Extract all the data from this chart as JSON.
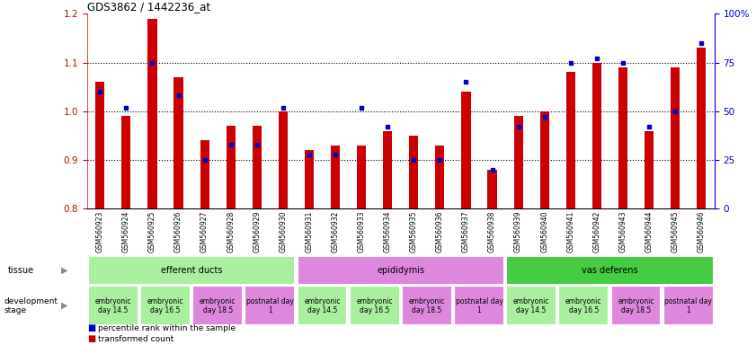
{
  "title": "GDS3862 / 1442236_at",
  "samples": [
    "GSM560923",
    "GSM560924",
    "GSM560925",
    "GSM560926",
    "GSM560927",
    "GSM560928",
    "GSM560929",
    "GSM560930",
    "GSM560931",
    "GSM560932",
    "GSM560933",
    "GSM560934",
    "GSM560935",
    "GSM560936",
    "GSM560937",
    "GSM560938",
    "GSM560939",
    "GSM560940",
    "GSM560941",
    "GSM560942",
    "GSM560943",
    "GSM560944",
    "GSM560945",
    "GSM560946"
  ],
  "red_values": [
    1.06,
    0.99,
    1.19,
    1.07,
    0.94,
    0.97,
    0.97,
    1.0,
    0.92,
    0.93,
    0.93,
    0.96,
    0.95,
    0.93,
    1.04,
    0.88,
    0.99,
    1.0,
    1.08,
    1.1,
    1.09,
    0.96,
    1.09,
    1.13
  ],
  "blue_values": [
    60,
    52,
    75,
    58,
    25,
    33,
    33,
    52,
    28,
    28,
    52,
    42,
    25,
    25,
    65,
    20,
    42,
    47,
    75,
    77,
    75,
    42,
    50,
    85
  ],
  "ylim_left": [
    0.8,
    1.2
  ],
  "ylim_right": [
    0,
    100
  ],
  "yticks_left": [
    0.8,
    0.9,
    1.0,
    1.1,
    1.2
  ],
  "yticks_right": [
    0,
    25,
    50,
    75,
    100
  ],
  "tissues": [
    {
      "label": "efferent ducts",
      "start": 0,
      "end": 8,
      "color": "#AAEEA0"
    },
    {
      "label": "epididymis",
      "start": 8,
      "end": 16,
      "color": "#DD88DD"
    },
    {
      "label": "vas deferens",
      "start": 16,
      "end": 24,
      "color": "#44CC44"
    }
  ],
  "dev_stages_grouped": [
    {
      "label": "embryonic\nday 14.5",
      "start": 0,
      "end": 2,
      "color": "#AAEEA0"
    },
    {
      "label": "embryonic\nday 16.5",
      "start": 2,
      "end": 4,
      "color": "#AAEEA0"
    },
    {
      "label": "embryonic\nday 18.5",
      "start": 4,
      "end": 6,
      "color": "#DD88DD"
    },
    {
      "label": "postnatal day\n1",
      "start": 6,
      "end": 8,
      "color": "#DD88DD"
    },
    {
      "label": "embryonic\nday 14.5",
      "start": 8,
      "end": 10,
      "color": "#AAEEA0"
    },
    {
      "label": "embryonic\nday 16.5",
      "start": 10,
      "end": 12,
      "color": "#AAEEA0"
    },
    {
      "label": "embryonic\nday 18.5",
      "start": 12,
      "end": 14,
      "color": "#DD88DD"
    },
    {
      "label": "postnatal day\n1",
      "start": 14,
      "end": 16,
      "color": "#DD88DD"
    },
    {
      "label": "embryonic\nday 14.5",
      "start": 16,
      "end": 18,
      "color": "#AAEEA0"
    },
    {
      "label": "embryonic\nday 16.5",
      "start": 18,
      "end": 20,
      "color": "#AAEEA0"
    },
    {
      "label": "embryonic\nday 18.5",
      "start": 20,
      "end": 22,
      "color": "#DD88DD"
    },
    {
      "label": "postnatal day\n1",
      "start": 22,
      "end": 24,
      "color": "#DD88DD"
    }
  ],
  "bar_color": "#CC0000",
  "dot_color": "#0000CC",
  "legend_red": "transformed count",
  "legend_blue": "percentile rank within the sample",
  "tick_label_bg": "#DDDDDD"
}
